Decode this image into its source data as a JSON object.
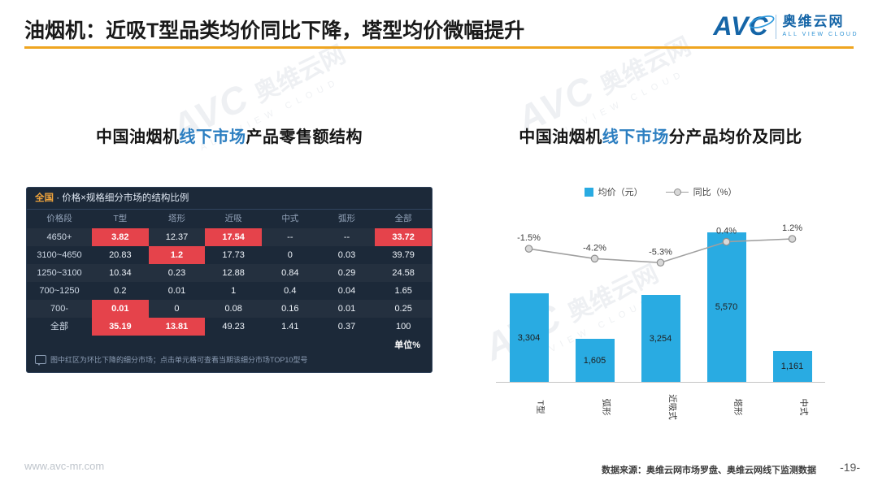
{
  "watermark": {
    "brand": "AVC",
    "name": "奥维云网",
    "subtitle": "ALL VIEW CLOUD"
  },
  "header": {
    "title": "油烟机：近吸T型品类均价同比下降，塔型均价微幅提升",
    "logo": {
      "brand": "AVC",
      "name": "奥维云网",
      "subtitle": "ALL VIEW CLOUD"
    }
  },
  "left_panel": {
    "heading": {
      "prefix": "中国油烟机",
      "highlight": "线下市场",
      "suffix": "产品零售额结构"
    },
    "table": {
      "title_highlight": "全国",
      "title_rest": " · 价格×规格细分市场的结构比例",
      "columns": [
        "价格段",
        "T型",
        "塔形",
        "近吸",
        "中式",
        "弧形",
        "全部"
      ],
      "rows": [
        {
          "label": "4650+",
          "cells": [
            "3.82",
            "12.37",
            "17.54",
            "--",
            "--",
            "33.72"
          ],
          "red": [
            0,
            2,
            5
          ]
        },
        {
          "label": "3100~4650",
          "cells": [
            "20.83",
            "1.2",
            "17.73",
            "0",
            "0.03",
            "39.79"
          ],
          "red": [
            1
          ]
        },
        {
          "label": "1250~3100",
          "cells": [
            "10.34",
            "0.23",
            "12.88",
            "0.84",
            "0.29",
            "24.58"
          ],
          "red": []
        },
        {
          "label": "700~1250",
          "cells": [
            "0.2",
            "0.01",
            "1",
            "0.4",
            "0.04",
            "1.65"
          ],
          "red": []
        },
        {
          "label": "700-",
          "cells": [
            "0.01",
            "0",
            "0.08",
            "0.16",
            "0.01",
            "0.25"
          ],
          "red": [
            0
          ]
        },
        {
          "label": "全部",
          "cells": [
            "35.19",
            "13.81",
            "49.23",
            "1.41",
            "0.37",
            "100"
          ],
          "red": [
            0,
            1
          ]
        }
      ],
      "note": "图中红区为环比下降的细分市场；点击单元格可查看当期该细分市场TOP10型号",
      "unit": "单位%"
    }
  },
  "right_panel": {
    "heading": {
      "prefix": "中国油烟机",
      "highlight": "线下市场",
      "suffix": "分产品均价及同比"
    }
  },
  "chart_data": {
    "type": "bar+line",
    "categories": [
      "T型",
      "弧形",
      "近吸式",
      "塔形",
      "中式"
    ],
    "series": [
      {
        "name": "均价（元）",
        "type": "bar",
        "values": [
          3304,
          1605,
          3254,
          5570,
          1161
        ],
        "labels": [
          "3,304",
          "1,605",
          "3,254",
          "5,570",
          "1,161"
        ],
        "color": "#29abe2"
      },
      {
        "name": "同比（%）",
        "type": "line",
        "values": [
          -1.5,
          -4.2,
          -5.3,
          0.4,
          1.2
        ],
        "labels": [
          "-1.5%",
          "-4.2%",
          "-5.3%",
          "0.4%",
          "1.2%"
        ],
        "color": "#a0a0a0"
      }
    ],
    "legend_position": "top",
    "grid": false,
    "ylim_bar": [
      0,
      5800
    ],
    "ylim_line": [
      -8,
      4
    ]
  },
  "footer": {
    "website": "www.avc-mr.com",
    "source": "数据来源：奥维云网市场罗盘、奥维云网线下监测数据",
    "page": "-19-"
  }
}
